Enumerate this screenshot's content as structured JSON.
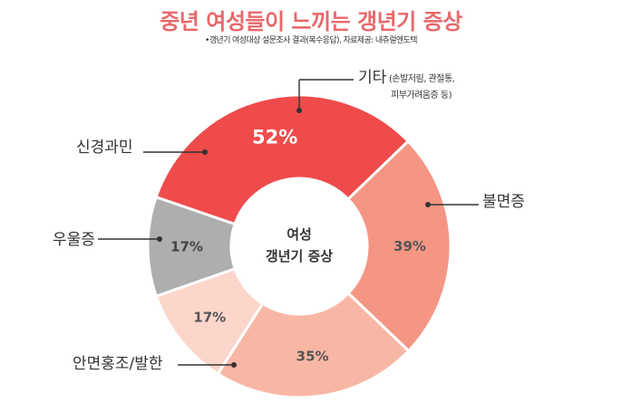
{
  "title": "중년 여성들이 느끼는 갱년기 증상",
  "subtitle": "•갱년기 여성대상 설문조사 결과(복수응답), 자료제공: 내츄럴엔도텍",
  "center_label": [
    "여성",
    "갱년기 증상"
  ],
  "chart_data": {
    "type": "donut",
    "title": "중년 여성들이 느끼는 갱년기 증상",
    "subtitle": "•갱년기 여성대상 설문조사 결과(복수응답), 자료제공: 내츄럴엔도텍",
    "center_label": "여성 갱년기 증상",
    "slices": [
      {
        "label": "불면증",
        "value": 52,
        "value_label": "52%",
        "color": "#ef4b4b"
      },
      {
        "label": "안면홍조/발한",
        "value": 39,
        "value_label": "39%",
        "color": "#f59684"
      },
      {
        "label": "우울증",
        "value": 35,
        "value_label": "35%",
        "color": "#f8b7a4"
      },
      {
        "label": "신경과민",
        "value": 17,
        "value_label": "17%",
        "color": "#fcd6cb"
      },
      {
        "label": "기타",
        "label_note": [
          "(손발저림, 관절통,",
          "피부가려움증 등)"
        ],
        "value": 17,
        "value_label": "17%",
        "color": "#aeaeae"
      }
    ]
  }
}
